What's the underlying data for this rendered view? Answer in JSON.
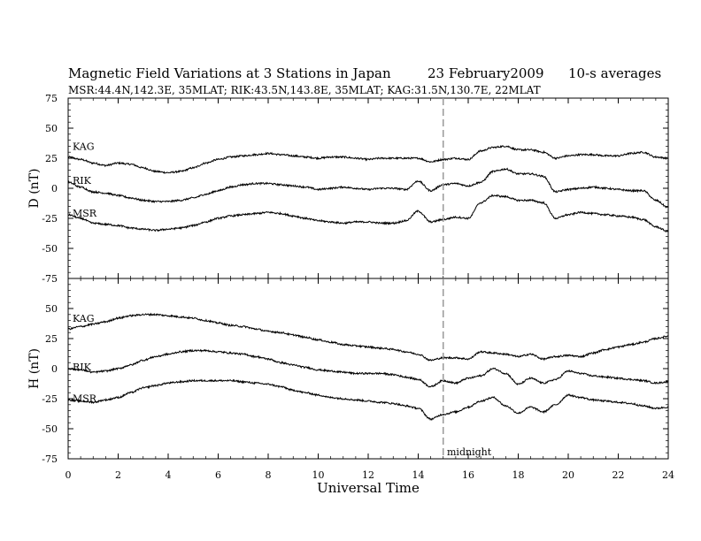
{
  "header": {
    "title": "Magnetic Field Variations at 3 Stations in Japan",
    "date": "23 February2009",
    "averaging": "10-s averages",
    "stations": "MSR:44.4N,142.3E, 35MLAT;  RIK:43.5N,143.8E, 35MLAT;  KAG:31.5N,130.7E, 22MLAT"
  },
  "chart_data": [
    {
      "type": "line",
      "panel": "D",
      "ylabel": "D (nT)",
      "xlim": [
        0,
        24
      ],
      "ylim": [
        -75,
        75
      ],
      "yticks": [
        75,
        50,
        25,
        0,
        -25,
        -50,
        -75
      ],
      "series": [
        {
          "name": "KAG",
          "x": [
            0,
            0.5,
            1,
            1.5,
            2,
            2.5,
            3,
            3.5,
            4,
            4.5,
            5,
            5.5,
            6,
            6.5,
            7,
            7.5,
            8,
            8.5,
            9,
            9.5,
            10,
            10.5,
            11,
            11.5,
            12,
            12.5,
            13,
            13.5,
            14,
            14.5,
            15,
            15.5,
            16,
            16.5,
            17,
            17.5,
            18,
            18.5,
            19,
            19.5,
            20,
            20.5,
            21,
            21.5,
            22,
            22.5,
            23,
            23.5,
            24
          ],
          "values": [
            26,
            24,
            21,
            19,
            21,
            20,
            17,
            14,
            13,
            14,
            17,
            21,
            24,
            26,
            27,
            28,
            29,
            28,
            27,
            26,
            25,
            26,
            26,
            25,
            24,
            25,
            25,
            25,
            25,
            22,
            24,
            25,
            24,
            31,
            34,
            35,
            32,
            32,
            30,
            25,
            27,
            28,
            28,
            27,
            27,
            29,
            30,
            26,
            25
          ]
        },
        {
          "name": "RIK",
          "x": [
            0,
            0.5,
            1,
            1.5,
            2,
            2.5,
            3,
            3.5,
            4,
            4.5,
            5,
            5.5,
            6,
            6.5,
            7,
            7.5,
            8,
            8.5,
            9,
            9.5,
            10,
            10.5,
            11,
            11.5,
            12,
            12.5,
            13,
            13.5,
            14,
            14.5,
            15,
            15.5,
            16,
            16.5,
            17,
            17.5,
            18,
            18.5,
            19,
            19.5,
            20,
            20.5,
            21,
            21.5,
            22,
            22.5,
            23,
            23.5,
            24
          ],
          "values": [
            5,
            1,
            -3,
            -4,
            -6,
            -8,
            -10,
            -11,
            -11,
            -10,
            -8,
            -5,
            -2,
            1,
            3,
            4,
            4,
            3,
            2,
            1,
            -1,
            0,
            1,
            0,
            -1,
            0,
            0,
            -1,
            6,
            -2,
            3,
            4,
            2,
            5,
            14,
            16,
            12,
            12,
            10,
            -3,
            -1,
            0,
            1,
            0,
            -1,
            -2,
            -2,
            -10,
            -16
          ]
        },
        {
          "name": "MSR",
          "x": [
            0,
            0.5,
            1,
            1.5,
            2,
            2.5,
            3,
            3.5,
            4,
            4.5,
            5,
            5.5,
            6,
            6.5,
            7,
            7.5,
            8,
            8.5,
            9,
            9.5,
            10,
            10.5,
            11,
            11.5,
            12,
            12.5,
            13,
            13.5,
            14,
            14.5,
            15,
            15.5,
            16,
            16.5,
            17,
            17.5,
            18,
            18.5,
            19,
            19.5,
            20,
            20.5,
            21,
            21.5,
            22,
            22.5,
            23,
            23.5,
            24
          ],
          "values": [
            -22,
            -25,
            -29,
            -30,
            -31,
            -33,
            -34,
            -35,
            -34,
            -33,
            -31,
            -28,
            -25,
            -23,
            -22,
            -21,
            -20,
            -21,
            -23,
            -25,
            -27,
            -28,
            -29,
            -28,
            -28,
            -29,
            -29,
            -27,
            -19,
            -28,
            -26,
            -24,
            -25,
            -12,
            -6,
            -7,
            -10,
            -10,
            -12,
            -25,
            -22,
            -20,
            -21,
            -22,
            -23,
            -24,
            -26,
            -32,
            -36
          ]
        }
      ]
    },
    {
      "type": "line",
      "panel": "H",
      "ylabel": "H (nT)",
      "xlabel": "Universal Time",
      "xlim": [
        0,
        24
      ],
      "ylim": [
        -75,
        75
      ],
      "xticks": [
        0,
        2,
        4,
        6,
        8,
        10,
        12,
        14,
        16,
        18,
        20,
        22,
        24
      ],
      "yticks": [
        50,
        25,
        0,
        -25,
        -50,
        -75
      ],
      "series": [
        {
          "name": "KAG",
          "x": [
            0,
            0.5,
            1,
            1.5,
            2,
            2.5,
            3,
            3.5,
            4,
            4.5,
            5,
            5.5,
            6,
            6.5,
            7,
            7.5,
            8,
            8.5,
            9,
            9.5,
            10,
            10.5,
            11,
            11.5,
            12,
            12.5,
            13,
            13.5,
            14,
            14.5,
            15,
            15.5,
            16,
            16.5,
            17,
            17.5,
            18,
            18.5,
            19,
            19.5,
            20,
            20.5,
            21,
            21.5,
            22,
            22.5,
            23,
            23.5,
            24
          ],
          "values": [
            33,
            35,
            37,
            39,
            42,
            44,
            45,
            45,
            44,
            43,
            42,
            40,
            38,
            36,
            35,
            33,
            31,
            30,
            28,
            26,
            24,
            22,
            20,
            19,
            18,
            17,
            16,
            14,
            12,
            7,
            9,
            9,
            8,
            14,
            13,
            12,
            10,
            12,
            8,
            10,
            11,
            10,
            13,
            16,
            18,
            20,
            22,
            25,
            27
          ]
        },
        {
          "name": "RIK",
          "x": [
            0,
            0.5,
            1,
            1.5,
            2,
            2.5,
            3,
            3.5,
            4,
            4.5,
            5,
            5.5,
            6,
            6.5,
            7,
            7.5,
            8,
            8.5,
            9,
            9.5,
            10,
            10.5,
            11,
            11.5,
            12,
            12.5,
            13,
            13.5,
            14,
            14.5,
            15,
            15.5,
            16,
            16.5,
            17,
            17.5,
            18,
            18.5,
            19,
            19.5,
            20,
            20.5,
            21,
            21.5,
            22,
            22.5,
            23,
            23.5,
            24
          ],
          "values": [
            0,
            -1,
            -3,
            -2,
            0,
            3,
            7,
            10,
            12,
            14,
            15,
            15,
            14,
            13,
            12,
            10,
            8,
            5,
            3,
            1,
            -1,
            -2,
            -3,
            -4,
            -4,
            -4,
            -5,
            -7,
            -9,
            -15,
            -10,
            -12,
            -8,
            -6,
            0,
            -4,
            -13,
            -8,
            -12,
            -9,
            -2,
            -4,
            -6,
            -7,
            -8,
            -9,
            -10,
            -12,
            -11
          ]
        },
        {
          "name": "MSR",
          "x": [
            0,
            0.5,
            1,
            1.5,
            2,
            2.5,
            3,
            3.5,
            4,
            4.5,
            5,
            5.5,
            6,
            6.5,
            7,
            7.5,
            8,
            8.5,
            9,
            9.5,
            10,
            10.5,
            11,
            11.5,
            12,
            12.5,
            13,
            13.5,
            14,
            14.5,
            15,
            15.5,
            16,
            16.5,
            17,
            17.5,
            18,
            18.5,
            19,
            19.5,
            20,
            20.5,
            21,
            21.5,
            22,
            22.5,
            23,
            23.5,
            24
          ],
          "values": [
            -26,
            -27,
            -28,
            -26,
            -24,
            -20,
            -16,
            -14,
            -12,
            -11,
            -10,
            -10,
            -10,
            -10,
            -11,
            -12,
            -13,
            -15,
            -18,
            -20,
            -22,
            -24,
            -25,
            -26,
            -27,
            -28,
            -29,
            -31,
            -33,
            -42,
            -38,
            -36,
            -32,
            -27,
            -24,
            -31,
            -37,
            -32,
            -36,
            -30,
            -22,
            -24,
            -26,
            -27,
            -28,
            -29,
            -31,
            -33,
            -32
          ]
        }
      ]
    }
  ],
  "annotation": {
    "midnight_label": "midnight",
    "midnight_ut": 15
  }
}
